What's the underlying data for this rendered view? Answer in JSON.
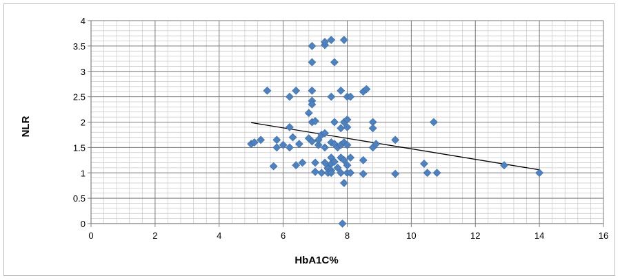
{
  "chart_data": {
    "type": "scatter",
    "title": "",
    "xlabel": "HbA1C%",
    "ylabel": "NLR",
    "xlim": [
      0,
      16
    ],
    "ylim": [
      0,
      4
    ],
    "xticks": [
      0,
      2,
      4,
      6,
      8,
      10,
      12,
      14,
      16
    ],
    "yticks": [
      0,
      0.5,
      1,
      1.5,
      2,
      2.5,
      3,
      3.5,
      4
    ],
    "xtick_labels": [
      "0",
      "2",
      "4",
      "6",
      "8",
      "10",
      "12",
      "14",
      "16"
    ],
    "ytick_labels": [
      "0",
      "0.5",
      "1",
      "1.5",
      "2",
      "2.5",
      "3",
      "3.5",
      "4"
    ],
    "grid": "major and minor gridlines on both axes",
    "legend": "none",
    "marker_color": "#4f81bd",
    "trendline_color": "#000000",
    "series": [
      {
        "points": [
          [
            5.0,
            1.57
          ],
          [
            5.1,
            1.6
          ],
          [
            5.3,
            1.65
          ],
          [
            5.5,
            2.62
          ],
          [
            5.7,
            1.13
          ],
          [
            5.8,
            1.5
          ],
          [
            5.8,
            1.65
          ],
          [
            6.0,
            1.55
          ],
          [
            6.2,
            1.9
          ],
          [
            6.2,
            2.5
          ],
          [
            6.2,
            1.5
          ],
          [
            6.3,
            1.7
          ],
          [
            6.4,
            2.62
          ],
          [
            6.4,
            1.15
          ],
          [
            6.5,
            1.57
          ],
          [
            6.6,
            1.2
          ],
          [
            6.8,
            2.18
          ],
          [
            6.8,
            1.68
          ],
          [
            6.9,
            3.5
          ],
          [
            6.9,
            3.18
          ],
          [
            6.9,
            2.62
          ],
          [
            6.9,
            2.42
          ],
          [
            6.9,
            2.35
          ],
          [
            6.9,
            2.0
          ],
          [
            6.9,
            1.62
          ],
          [
            7.0,
            2.02
          ],
          [
            7.0,
            1.2
          ],
          [
            7.0,
            1.02
          ],
          [
            7.1,
            1.55
          ],
          [
            7.1,
            1.65
          ],
          [
            7.2,
            1.75
          ],
          [
            7.2,
            1.0
          ],
          [
            7.3,
            3.52
          ],
          [
            7.3,
            3.58
          ],
          [
            7.3,
            1.78
          ],
          [
            7.3,
            1.5
          ],
          [
            7.3,
            1.2
          ],
          [
            7.4,
            1.1
          ],
          [
            7.4,
            1.08
          ],
          [
            7.4,
            1.0
          ],
          [
            7.5,
            3.62
          ],
          [
            7.5,
            2.5
          ],
          [
            7.5,
            1.6
          ],
          [
            7.5,
            1.3
          ],
          [
            7.5,
            1.18
          ],
          [
            7.5,
            1.05
          ],
          [
            7.5,
            1.0
          ],
          [
            7.6,
            3.18
          ],
          [
            7.6,
            2.0
          ],
          [
            7.6,
            1.57
          ],
          [
            7.6,
            1.22
          ],
          [
            7.7,
            1.5
          ],
          [
            7.7,
            1.1
          ],
          [
            7.8,
            2.62
          ],
          [
            7.8,
            1.88
          ],
          [
            7.8,
            1.55
          ],
          [
            7.8,
            1.3
          ],
          [
            7.8,
            1.0
          ],
          [
            7.9,
            3.62
          ],
          [
            7.9,
            2.0
          ],
          [
            7.9,
            0.8
          ],
          [
            7.85,
            0.0
          ],
          [
            7.9,
            1.6
          ],
          [
            7.9,
            1.25
          ],
          [
            8.0,
            2.5
          ],
          [
            8.0,
            2.05
          ],
          [
            8.0,
            1.9
          ],
          [
            8.0,
            1.55
          ],
          [
            8.0,
            1.15
          ],
          [
            8.0,
            1.0
          ],
          [
            8.1,
            2.5
          ],
          [
            8.1,
            1.3
          ],
          [
            8.1,
            1.0
          ],
          [
            8.5,
            2.6
          ],
          [
            8.5,
            1.25
          ],
          [
            8.5,
            0.98
          ],
          [
            8.6,
            2.65
          ],
          [
            8.8,
            2.0
          ],
          [
            8.8,
            1.88
          ],
          [
            8.8,
            1.5
          ],
          [
            8.9,
            1.57
          ],
          [
            9.5,
            1.65
          ],
          [
            9.5,
            0.98
          ],
          [
            10.4,
            1.18
          ],
          [
            10.5,
            1.0
          ],
          [
            10.7,
            2.0
          ],
          [
            10.8,
            1.0
          ],
          [
            12.9,
            1.15
          ],
          [
            14.0,
            1.0
          ]
        ]
      }
    ],
    "trendline": {
      "x": [
        5.0,
        14.0
      ],
      "y": [
        1.99,
        1.06
      ]
    }
  }
}
